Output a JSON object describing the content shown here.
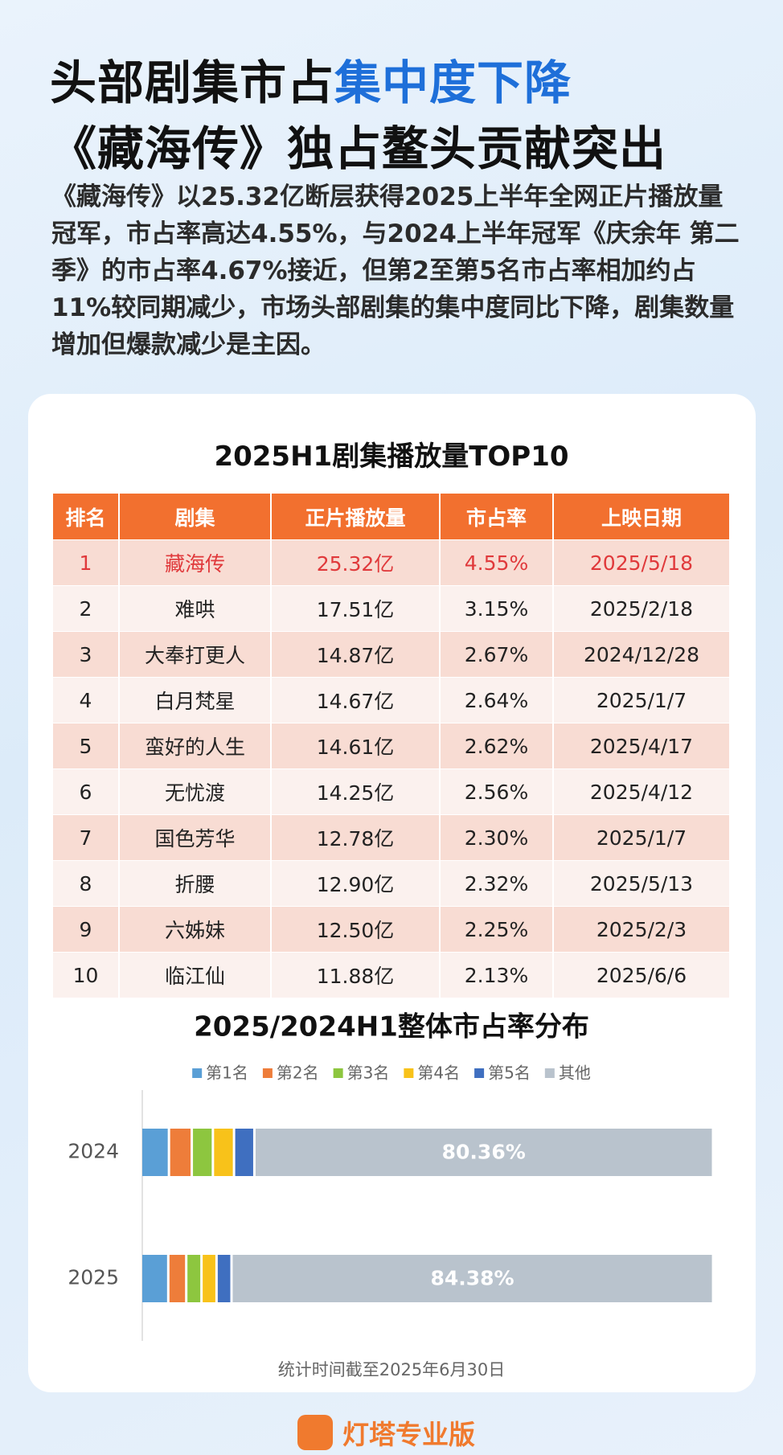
{
  "header": {
    "title": [
      "头部剧集市占",
      "集中度下降",
      "《藏海传》独占鳌头贡献突出"
    ],
    "intro": "《藏海传》以25.32亿断层获得2025上半年全网正片播放量冠军，市占率高达4.55%，与2024上半年冠军《庆余年  第二季》的市占率4.67%接近，但第2至第5名市占率相加约占11%较同期减少，市场头部剧集的集中度同比下降，剧集数量增加但爆款减少是主因。"
  },
  "table": {
    "title": "2025H1剧集播放量TOP10",
    "header": [
      "排名",
      "剧集",
      "正片播放量",
      "市占率",
      "上映日期"
    ],
    "rows": [
      [
        "1",
        "藏海传",
        "25.32亿",
        "4.55%",
        "2025/5/18"
      ],
      [
        "2",
        "难哄",
        "17.51亿",
        "3.15%",
        "2025/2/18"
      ],
      [
        "3",
        "大奉打更人",
        "14.87亿",
        "2.67%",
        "2024/12/28"
      ],
      [
        "4",
        "白月梵星",
        "14.67亿",
        "2.64%",
        "2025/1/7"
      ],
      [
        "5",
        "蛮好的人生",
        "14.61亿",
        "2.62%",
        "2025/4/17"
      ],
      [
        "6",
        "无忧渡",
        "14.25亿",
        "2.56%",
        "2025/4/12"
      ],
      [
        "7",
        "国色芳华",
        "12.78亿",
        "2.30%",
        "2025/1/7"
      ],
      [
        "8",
        "折腰",
        "12.90亿",
        "2.32%",
        "2025/5/13"
      ],
      [
        "9",
        "六姊妹",
        "12.50亿",
        "2.25%",
        "2025/2/3"
      ],
      [
        "10",
        "临江仙",
        "11.88亿",
        "2.13%",
        "2025/6/6"
      ]
    ]
  },
  "chart_data": {
    "type": "stacked-barh",
    "title": "2025/2024H1整体市占率分布",
    "categories": [
      "2024",
      "2025"
    ],
    "xlim": [
      0,
      100
    ],
    "series": [
      {
        "name": "第1名",
        "color": "#5a9fd6",
        "values": [
          4.67,
          4.55
        ]
      },
      {
        "name": "第2名",
        "color": "#ee7d3a",
        "values": [
          4.0,
          3.15
        ]
      },
      {
        "name": "第3名",
        "color": "#8dc63f",
        "values": [
          3.7,
          2.67
        ]
      },
      {
        "name": "第4名",
        "color": "#f8c21a",
        "values": [
          3.7,
          2.64
        ]
      },
      {
        "name": "第5名",
        "color": "#3f6fc0",
        "values": [
          3.57,
          2.62
        ]
      },
      {
        "name": "其他",
        "color": "#b9c3cd",
        "values": [
          80.36,
          84.38
        ],
        "value_labels": [
          "80.36%",
          "84.38%"
        ]
      }
    ]
  },
  "footer": {
    "note": "统计时间截至2025年6月30日",
    "brand": "灯塔专业版"
  }
}
